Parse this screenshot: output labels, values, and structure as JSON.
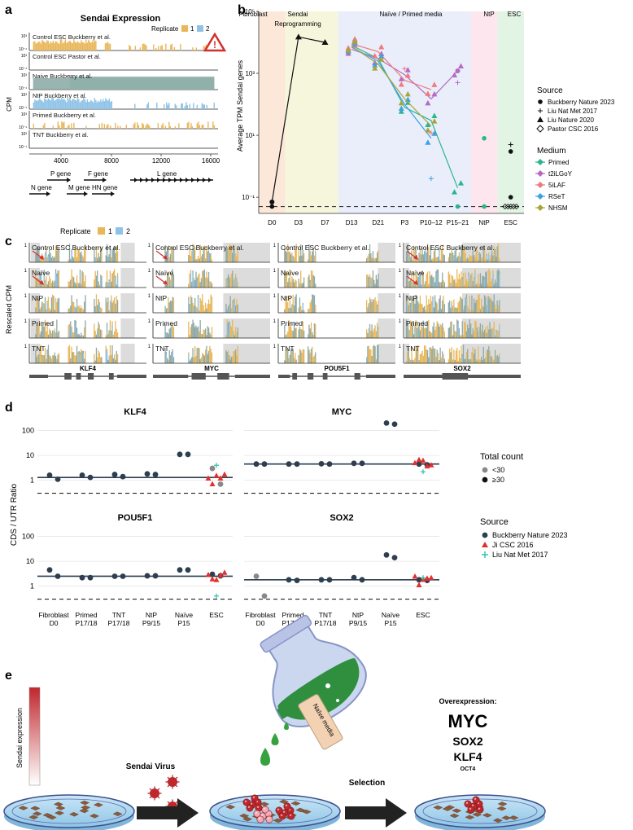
{
  "panel_labels": [
    "a",
    "b",
    "c",
    "d",
    "e"
  ],
  "colors": {
    "rep1": "#E9B75A",
    "rep2": "#8EC3E6",
    "grey_shade": "#DCDCDC",
    "overlap": "#8FA9A4",
    "ctrl_dark": "#2C3E50",
    "ji_red": "#E0312F",
    "liu_teal": "#2AC2A8",
    "primed": "#2BB58F",
    "t2ilgoy": "#B46BC3",
    "i5laf": "#EE7B7B",
    "rset": "#3EA2E0",
    "nhsm": "#A7A53A"
  },
  "panel_a": {
    "title": "Sendai Expression",
    "legend_title": "Replicate",
    "legend_labels": [
      "1",
      "2"
    ],
    "ylabel": "CPM",
    "tick_top": "10³",
    "tick_bottom": "10⁻¹",
    "tracks": [
      "Control ESC Buckberry et al.",
      "Control ESC Pastor et al.",
      "Naive Buckberry et al.",
      "NtP Buckberry et al.",
      "Primed Buckberry et al.",
      "TNT Buckberry et al."
    ],
    "x_ticks": [
      "4000",
      "8000",
      "12000",
      "16000"
    ],
    "genes": [
      "N gene",
      "P gene",
      "M gene",
      "F gene",
      "HN gene",
      "L gene"
    ],
    "warning_symbol": "!"
  },
  "chart_data": [
    {
      "type": "line",
      "panel": "b",
      "ylabel": "Average TPM Sendai genes",
      "y_scale": "log10",
      "ylim": [
        0.05,
        100000
      ],
      "y_ticks": [
        "10⁵",
        "10³",
        "10¹",
        "10⁻¹"
      ],
      "categories": [
        "D0",
        "D3",
        "D7",
        "D13",
        "D21",
        "P3",
        "P10–12",
        "P15–21",
        "NtP",
        "ESC"
      ],
      "regions": [
        "Fibroblast",
        "Sendai Reprogramming",
        "Naïve / Primed media",
        "NtP",
        "ESC"
      ],
      "region_sublabel": "Reprogramming",
      "legend_source_title": "Source",
      "sources": [
        "Buckberry Nature 2023",
        "Liu Nat Met 2017",
        "Liu Nature 2020",
        "Pastor CSC 2016"
      ],
      "legend_medium_title": "Medium",
      "mediums": [
        "Primed",
        "t2iLGoY",
        "5iLAF",
        "RSeT",
        "NHSM"
      ],
      "series": [
        {
          "name": "Fibroblast/Sendai",
          "values": [
            0.07,
            15000,
            10000,
            null,
            null,
            null,
            null,
            null,
            null,
            null
          ]
        },
        {
          "name": "Primed",
          "values": [
            null,
            null,
            null,
            8000,
            3000,
            80,
            30,
            0.2,
            null,
            null
          ]
        },
        {
          "name": "t2iLGoY",
          "values": [
            null,
            null,
            null,
            6000,
            3000,
            900,
            150,
            1200,
            null,
            null
          ]
        },
        {
          "name": "5iLAF",
          "values": [
            null,
            null,
            null,
            9000,
            5000,
            600,
            300,
            null,
            null,
            null
          ]
        },
        {
          "name": "RSeT",
          "values": [
            null,
            null,
            null,
            7000,
            2500,
            100,
            8,
            null,
            null,
            null
          ]
        },
        {
          "name": "NHSM",
          "values": [
            null,
            null,
            null,
            7500,
            2000,
            150,
            20,
            null,
            null,
            null
          ]
        }
      ],
      "extra_points": [
        {
          "category": "NtP",
          "medium": "Primed",
          "value": 8
        },
        {
          "category": "ESC",
          "source": "Buckberry Nature 2023",
          "value": 3
        },
        {
          "category": "ESC",
          "source": "Buckberry Nature 2023",
          "value": 0.1
        },
        {
          "category": "ESC",
          "source": "Liu Nat Met 2017",
          "value": 5
        }
      ]
    },
    {
      "type": "scatter",
      "panel": "d",
      "ylabel": "CDS / UTR Ratio",
      "y_scale": "log10",
      "y_ticks": [
        "100",
        "10",
        "1"
      ],
      "genes": [
        "KLF4",
        "MYC",
        "POU5F1",
        "SOX2"
      ],
      "categories": [
        "Fibroblast D0",
        "Primed P17/18",
        "TNT P17/18",
        "NtP P9/15",
        "Naïve P15",
        "ESC"
      ],
      "legend_count_title": "Total count",
      "count_labels": [
        "<30",
        "≥30"
      ],
      "legend_source_title": "Source",
      "sources": [
        "Buckberry Nature 2023",
        "Ji CSC 2016",
        "Liu Nat Met 2017"
      ],
      "medians": {
        "KLF4": 1.3,
        "MYC": 4.5,
        "POU5F1": 2.5,
        "SOX2": 1.8
      },
      "points": {
        "KLF4": [
          [
            0,
            1.6
          ],
          [
            0,
            1.1
          ],
          [
            1,
            1.6
          ],
          [
            1,
            1.3
          ],
          [
            2,
            1.7
          ],
          [
            2,
            1.4
          ],
          [
            3,
            1.8
          ],
          [
            3,
            1.7
          ],
          [
            4,
            11
          ],
          [
            4,
            11
          ],
          [
            5,
            3,
            "grey"
          ],
          [
            5,
            0.7,
            "grey"
          ]
        ],
        "MYC": [
          [
            0,
            4.5
          ],
          [
            0,
            4.5
          ],
          [
            1,
            4.5
          ],
          [
            1,
            4.5
          ],
          [
            2,
            4.6
          ],
          [
            2,
            4.5
          ],
          [
            3,
            4.8
          ],
          [
            3,
            4.8
          ],
          [
            4,
            200
          ],
          [
            4,
            180
          ],
          [
            5,
            4.5
          ],
          [
            5,
            4.2
          ]
        ],
        "POU5F1": [
          [
            0,
            4.5
          ],
          [
            0,
            2.5
          ],
          [
            1,
            2.2
          ],
          [
            1,
            2.2
          ],
          [
            2,
            2.5
          ],
          [
            2,
            2.5
          ],
          [
            3,
            2.6
          ],
          [
            3,
            2.6
          ],
          [
            4,
            4.5
          ],
          [
            4,
            4.5
          ],
          [
            5,
            3
          ],
          [
            5,
            2.6
          ]
        ],
        "SOX2": [
          [
            0,
            2.5,
            "grey"
          ],
          [
            0,
            0.4,
            "grey"
          ],
          [
            1,
            1.8
          ],
          [
            1,
            1.7
          ],
          [
            2,
            1.8
          ],
          [
            2,
            1.8
          ],
          [
            3,
            2.2
          ],
          [
            3,
            1.8
          ],
          [
            4,
            18
          ],
          [
            4,
            14
          ],
          [
            5,
            1.8
          ],
          [
            5,
            1.7
          ]
        ]
      }
    }
  ],
  "panel_c": {
    "legend_title": "Replicate",
    "legend_labels": [
      "1",
      "2"
    ],
    "ylabel": "Rescaled CPM",
    "tick_label": "1",
    "row_labels": [
      "Control ESC Buckberry et al.",
      "Naïve",
      "NtP",
      "Primed",
      "TNT"
    ],
    "genes": [
      "KLF4",
      "MYC",
      "POU5F1",
      "SOX2"
    ]
  },
  "panel_e": {
    "sendai_label": "Sendai expression",
    "virus_label": "Sendai Virus",
    "flask_label": "Naïve media",
    "selection_label": "Selection",
    "overexpression_title": "Overexpression:",
    "overexpressed": [
      "MYC",
      "SOX2",
      "KLF4",
      "OCT4"
    ]
  }
}
